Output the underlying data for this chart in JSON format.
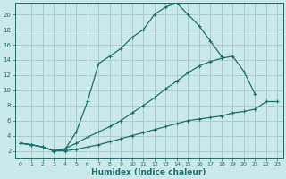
{
  "xlabel": "Humidex (Indice chaleur)",
  "background_color": "#cce9e9",
  "grid_color": "#aacfcf",
  "line_color": "#1a7070",
  "xlim": [
    -0.5,
    23.5
  ],
  "ylim": [
    1,
    21.5
  ],
  "xticks": [
    0,
    1,
    2,
    3,
    4,
    5,
    6,
    7,
    8,
    9,
    10,
    11,
    12,
    13,
    14,
    15,
    16,
    17,
    18,
    19,
    20,
    21,
    22,
    23
  ],
  "yticks": [
    2,
    4,
    6,
    8,
    10,
    12,
    14,
    16,
    18,
    20
  ],
  "series": [
    {
      "x": [
        0,
        1,
        2,
        3,
        4,
        5,
        6,
        7,
        8,
        9,
        10,
        11,
        12,
        13,
        14,
        15,
        16,
        17,
        18
      ],
      "y": [
        3.0,
        2.8,
        2.5,
        2.0,
        2.2,
        4.5,
        8.5,
        13.5,
        14.5,
        15.5,
        17.0,
        18.0,
        20.0,
        21.0,
        21.5,
        20.0,
        18.5,
        16.5,
        14.5
      ]
    },
    {
      "x": [
        0,
        1,
        2,
        3,
        4,
        5,
        6,
        7,
        8,
        9,
        10,
        11,
        12,
        13,
        14,
        15,
        16,
        17,
        18,
        19,
        20,
        21
      ],
      "y": [
        3.0,
        2.8,
        2.5,
        2.0,
        2.3,
        3.0,
        3.8,
        4.5,
        5.2,
        6.0,
        7.0,
        8.0,
        9.0,
        10.2,
        11.2,
        12.3,
        13.2,
        13.8,
        14.2,
        14.5,
        12.5,
        9.5
      ]
    },
    {
      "x": [
        0,
        1,
        2,
        3,
        4,
        5,
        6,
        7,
        8,
        9,
        10,
        11,
        12,
        13,
        14,
        15,
        16,
        17,
        18,
        19,
        20,
        21,
        22,
        23
      ],
      "y": [
        3.0,
        2.8,
        2.5,
        2.0,
        2.0,
        2.2,
        2.5,
        2.8,
        3.2,
        3.6,
        4.0,
        4.4,
        4.8,
        5.2,
        5.6,
        6.0,
        6.2,
        6.4,
        6.6,
        7.0,
        7.2,
        7.5,
        8.5,
        8.5
      ]
    }
  ]
}
